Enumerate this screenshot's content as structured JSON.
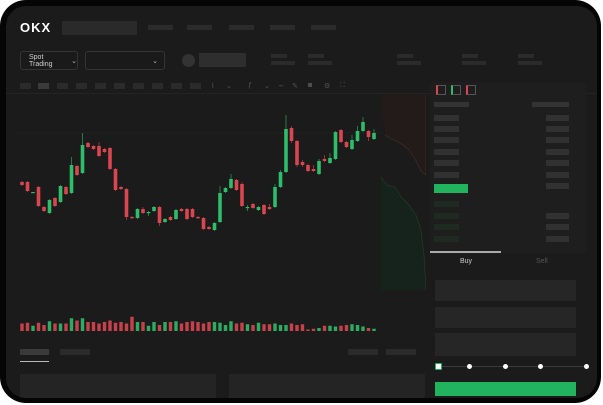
{
  "brand": {
    "logo_text": "OKX"
  },
  "market_selector": {
    "label": "Spot Trading",
    "icon": "chevron-down-icon"
  },
  "pair_selector": {
    "icon": "chevron-down-icon"
  },
  "trade_tabs": [
    {
      "label": "Buy",
      "active": true
    },
    {
      "label": "Sell",
      "active": false
    }
  ],
  "colors": {
    "up": "#2ebd6b",
    "down": "#d9464f",
    "background": "#1b1b1b",
    "accent": "#22b35e"
  },
  "leverage_slider": {
    "level_percent": 0,
    "stops": 5
  },
  "chart_data": {
    "type": "candlestick",
    "candles": [
      [
        118,
        119,
        114,
        115
      ],
      [
        118,
        119,
        108,
        109
      ],
      [
        107,
        108,
        107,
        108
      ],
      [
        113,
        114,
        93,
        94
      ],
      [
        93,
        94,
        88,
        89
      ],
      [
        87,
        101,
        86,
        100
      ],
      [
        102,
        103,
        93,
        94
      ],
      [
        98,
        115,
        97,
        114
      ],
      [
        113,
        114,
        105,
        106
      ],
      [
        107,
        143,
        106,
        135
      ],
      [
        134,
        135,
        124,
        125
      ],
      [
        127,
        167,
        126,
        155
      ],
      [
        157,
        158,
        152,
        153
      ],
      [
        154,
        155,
        150,
        151
      ],
      [
        154,
        158,
        143,
        144
      ],
      [
        151,
        152,
        147,
        148
      ],
      [
        152,
        153,
        130,
        131
      ],
      [
        131,
        132,
        109,
        110
      ],
      [
        113,
        114,
        110,
        111
      ],
      [
        111,
        112,
        80,
        83
      ],
      [
        83,
        84,
        81,
        82
      ],
      [
        82,
        92,
        81,
        91
      ],
      [
        91,
        93,
        86,
        87
      ],
      [
        87,
        89,
        84,
        88
      ],
      [
        89,
        94,
        88,
        93
      ],
      [
        93,
        94,
        74,
        77
      ],
      [
        78,
        82,
        77,
        81
      ],
      [
        83,
        84,
        79,
        80
      ],
      [
        81,
        91,
        80,
        90
      ],
      [
        91,
        92,
        88,
        89
      ],
      [
        91,
        92,
        80,
        81
      ],
      [
        91,
        92,
        82,
        83
      ],
      [
        83,
        84,
        81,
        82
      ],
      [
        82,
        83,
        70,
        71
      ],
      [
        73,
        74,
        70,
        71
      ],
      [
        70,
        78,
        69,
        77
      ],
      [
        78,
        114,
        77,
        107
      ],
      [
        108,
        113,
        107,
        112
      ],
      [
        112,
        126,
        111,
        121
      ],
      [
        120,
        121,
        109,
        110
      ],
      [
        116,
        118,
        93,
        94
      ],
      [
        92,
        95,
        89,
        93
      ],
      [
        96,
        97,
        91,
        92
      ],
      [
        90,
        94,
        89,
        93
      ],
      [
        95,
        96,
        85,
        86
      ],
      [
        93,
        96,
        90,
        91
      ],
      [
        93,
        116,
        92,
        113
      ],
      [
        113,
        130,
        112,
        128
      ],
      [
        128,
        185,
        127,
        171
      ],
      [
        172,
        174,
        157,
        159
      ],
      [
        159,
        160,
        133,
        135
      ],
      [
        138,
        140,
        133,
        135
      ],
      [
        135,
        136,
        128,
        129
      ],
      [
        131,
        135,
        128,
        129
      ],
      [
        126,
        141,
        125,
        139
      ],
      [
        141,
        145,
        138,
        139
      ],
      [
        137,
        147,
        136,
        142
      ],
      [
        141,
        169,
        140,
        168
      ],
      [
        170,
        171,
        157,
        158
      ],
      [
        158,
        159,
        152,
        153
      ],
      [
        151,
        165,
        150,
        160
      ],
      [
        159,
        174,
        158,
        169
      ],
      [
        169,
        183,
        168,
        178
      ],
      [
        169,
        170,
        159,
        163
      ],
      [
        161,
        171,
        160,
        167
      ]
    ],
    "volume": [
      10,
      11,
      7,
      11,
      8,
      13,
      10,
      10,
      10,
      17,
      14,
      17,
      12,
      12,
      10,
      12,
      14,
      11,
      12,
      10,
      19,
      12,
      12,
      7,
      12,
      8,
      12,
      12,
      13,
      10,
      12,
      13,
      12,
      10,
      12,
      12,
      11,
      8,
      13,
      10,
      11,
      9,
      8,
      11,
      9,
      9,
      10,
      8,
      8,
      10,
      8,
      9,
      2,
      3,
      4,
      7,
      7,
      6,
      7,
      8,
      9,
      8,
      6,
      4,
      3
    ]
  }
}
